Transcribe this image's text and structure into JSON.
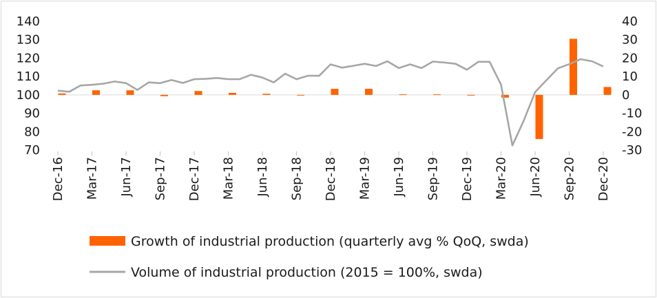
{
  "chart_data": {
    "type": "bar+line",
    "x": [
      "Dec-16",
      "Jan-17",
      "Feb-17",
      "Mar-17",
      "Apr-17",
      "May-17",
      "Jun-17",
      "Jul-17",
      "Aug-17",
      "Sep-17",
      "Oct-17",
      "Nov-17",
      "Dec-17",
      "Jan-18",
      "Feb-18",
      "Mar-18",
      "Apr-18",
      "May-18",
      "Jun-18",
      "Jul-18",
      "Aug-18",
      "Sep-18",
      "Oct-18",
      "Nov-18",
      "Dec-18",
      "Jan-19",
      "Feb-19",
      "Mar-19",
      "Apr-19",
      "May-19",
      "Jun-19",
      "Jul-19",
      "Aug-19",
      "Sep-19",
      "Oct-19",
      "Nov-19",
      "Dec-19",
      "Jan-20",
      "Feb-20",
      "Mar-20",
      "Apr-20",
      "May-20",
      "Jun-20",
      "Jul-20",
      "Aug-20",
      "Sep-20",
      "Oct-20",
      "Nov-20",
      "Dec-20"
    ],
    "x_tick_labels": [
      "Dec-16",
      "Mar-17",
      "Jun-17",
      "Sep-17",
      "Dec-17",
      "Mar-18",
      "Jun-18",
      "Sep-18",
      "Dec-18",
      "Mar-19",
      "Jun-19",
      "Sep-19",
      "Dec-19",
      "Mar-20",
      "Jun-20",
      "Sep-20",
      "Dec-20"
    ],
    "y_left": {
      "ticks": [
        70,
        80,
        90,
        100,
        110,
        120,
        130,
        140
      ],
      "lim": [
        70,
        140
      ]
    },
    "y_right": {
      "ticks": [
        -30,
        -20,
        -10,
        0,
        10,
        20,
        30,
        40
      ],
      "lim": [
        -30,
        40
      ]
    },
    "series": [
      {
        "name": "Growth of industrial production (quarterly avg % QoQ, swda)",
        "kind": "bar",
        "axis": "right",
        "color": "#ff6200",
        "points": [
          {
            "x": "Dec-16",
            "value": 0.8
          },
          {
            "x": "Mar-17",
            "value": 2.5
          },
          {
            "x": "Jun-17",
            "value": 2.5
          },
          {
            "x": "Sep-17",
            "value": -0.7
          },
          {
            "x": "Dec-17",
            "value": 2.1
          },
          {
            "x": "Mar-18",
            "value": 1.1
          },
          {
            "x": "Jun-18",
            "value": 0.6
          },
          {
            "x": "Sep-18",
            "value": -0.3
          },
          {
            "x": "Dec-18",
            "value": 3.3
          },
          {
            "x": "Mar-19",
            "value": 3.3
          },
          {
            "x": "Jun-19",
            "value": 0.3
          },
          {
            "x": "Sep-19",
            "value": 0.3
          },
          {
            "x": "Dec-19",
            "value": -0.2
          },
          {
            "x": "Mar-20",
            "value": -1.5
          },
          {
            "x": "Jun-20",
            "value": -24
          },
          {
            "x": "Sep-20",
            "value": 30.5
          },
          {
            "x": "Dec-20",
            "value": 4.3
          }
        ]
      },
      {
        "name": "Volume of industrial production (2015 = 100%, swda)",
        "kind": "line",
        "axis": "left",
        "color": "#a6a6a6",
        "values": [
          102.3,
          101.7,
          105.1,
          105.5,
          106.1,
          107.3,
          106.4,
          102.7,
          106.8,
          106.4,
          108.1,
          106.5,
          108.5,
          108.7,
          109.2,
          108.5,
          108.5,
          110.9,
          109.4,
          106.8,
          111.5,
          108.5,
          110.4,
          110.4,
          116.6,
          114.8,
          115.8,
          116.9,
          115.7,
          118.3,
          114.6,
          116.6,
          114.6,
          118.1,
          117.6,
          116.9,
          113.7,
          118.0,
          118.0,
          105.6,
          72.5,
          86.0,
          101.5,
          108.0,
          114.4,
          116.7,
          119.4,
          118.3,
          115.5
        ]
      }
    ],
    "legend": "bottom"
  }
}
